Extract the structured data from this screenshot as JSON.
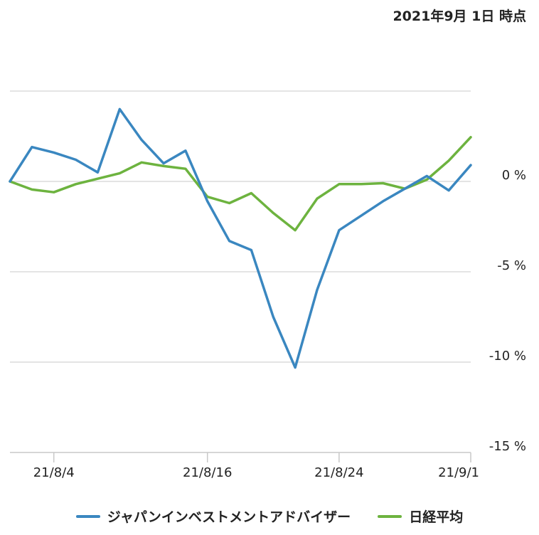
{
  "header": {
    "timestamp": "2021年9月 1日 時点"
  },
  "chart_data": {
    "type": "line",
    "x_ticks": [
      "21/8/4",
      "21/8/16",
      "21/8/24",
      "21/9/1"
    ],
    "x_tick_index": [
      2,
      9,
      15,
      21
    ],
    "y_ticks": [
      {
        "value": 0,
        "label": "0 %"
      },
      {
        "value": -5,
        "label": "-5 %"
      },
      {
        "value": -10,
        "label": "-10 %"
      },
      {
        "value": -15,
        "label": "-15 %"
      }
    ],
    "ylim": [
      -15,
      5
    ],
    "grid": true,
    "legend_position": "bottom",
    "series": [
      {
        "name": "ジャパンインベストメントアドバイザー",
        "color": "#3a87c0",
        "values": [
          0,
          1.9,
          1.6,
          1.2,
          0.5,
          4.0,
          2.3,
          1.0,
          1.7,
          -1.1,
          -3.3,
          -3.8,
          -7.5,
          -10.3,
          -6.0,
          -2.7,
          -1.9,
          -1.1,
          -0.4,
          0.3,
          -0.5,
          0.9
        ]
      },
      {
        "name": "日経平均",
        "color": "#6db33f",
        "values": [
          0,
          -0.45,
          -0.6,
          -0.15,
          0.15,
          0.45,
          1.05,
          0.85,
          0.7,
          -0.85,
          -1.2,
          -0.65,
          -1.75,
          -2.7,
          -0.95,
          -0.15,
          -0.15,
          -0.1,
          -0.4,
          0.1,
          1.15,
          2.45
        ]
      }
    ]
  }
}
